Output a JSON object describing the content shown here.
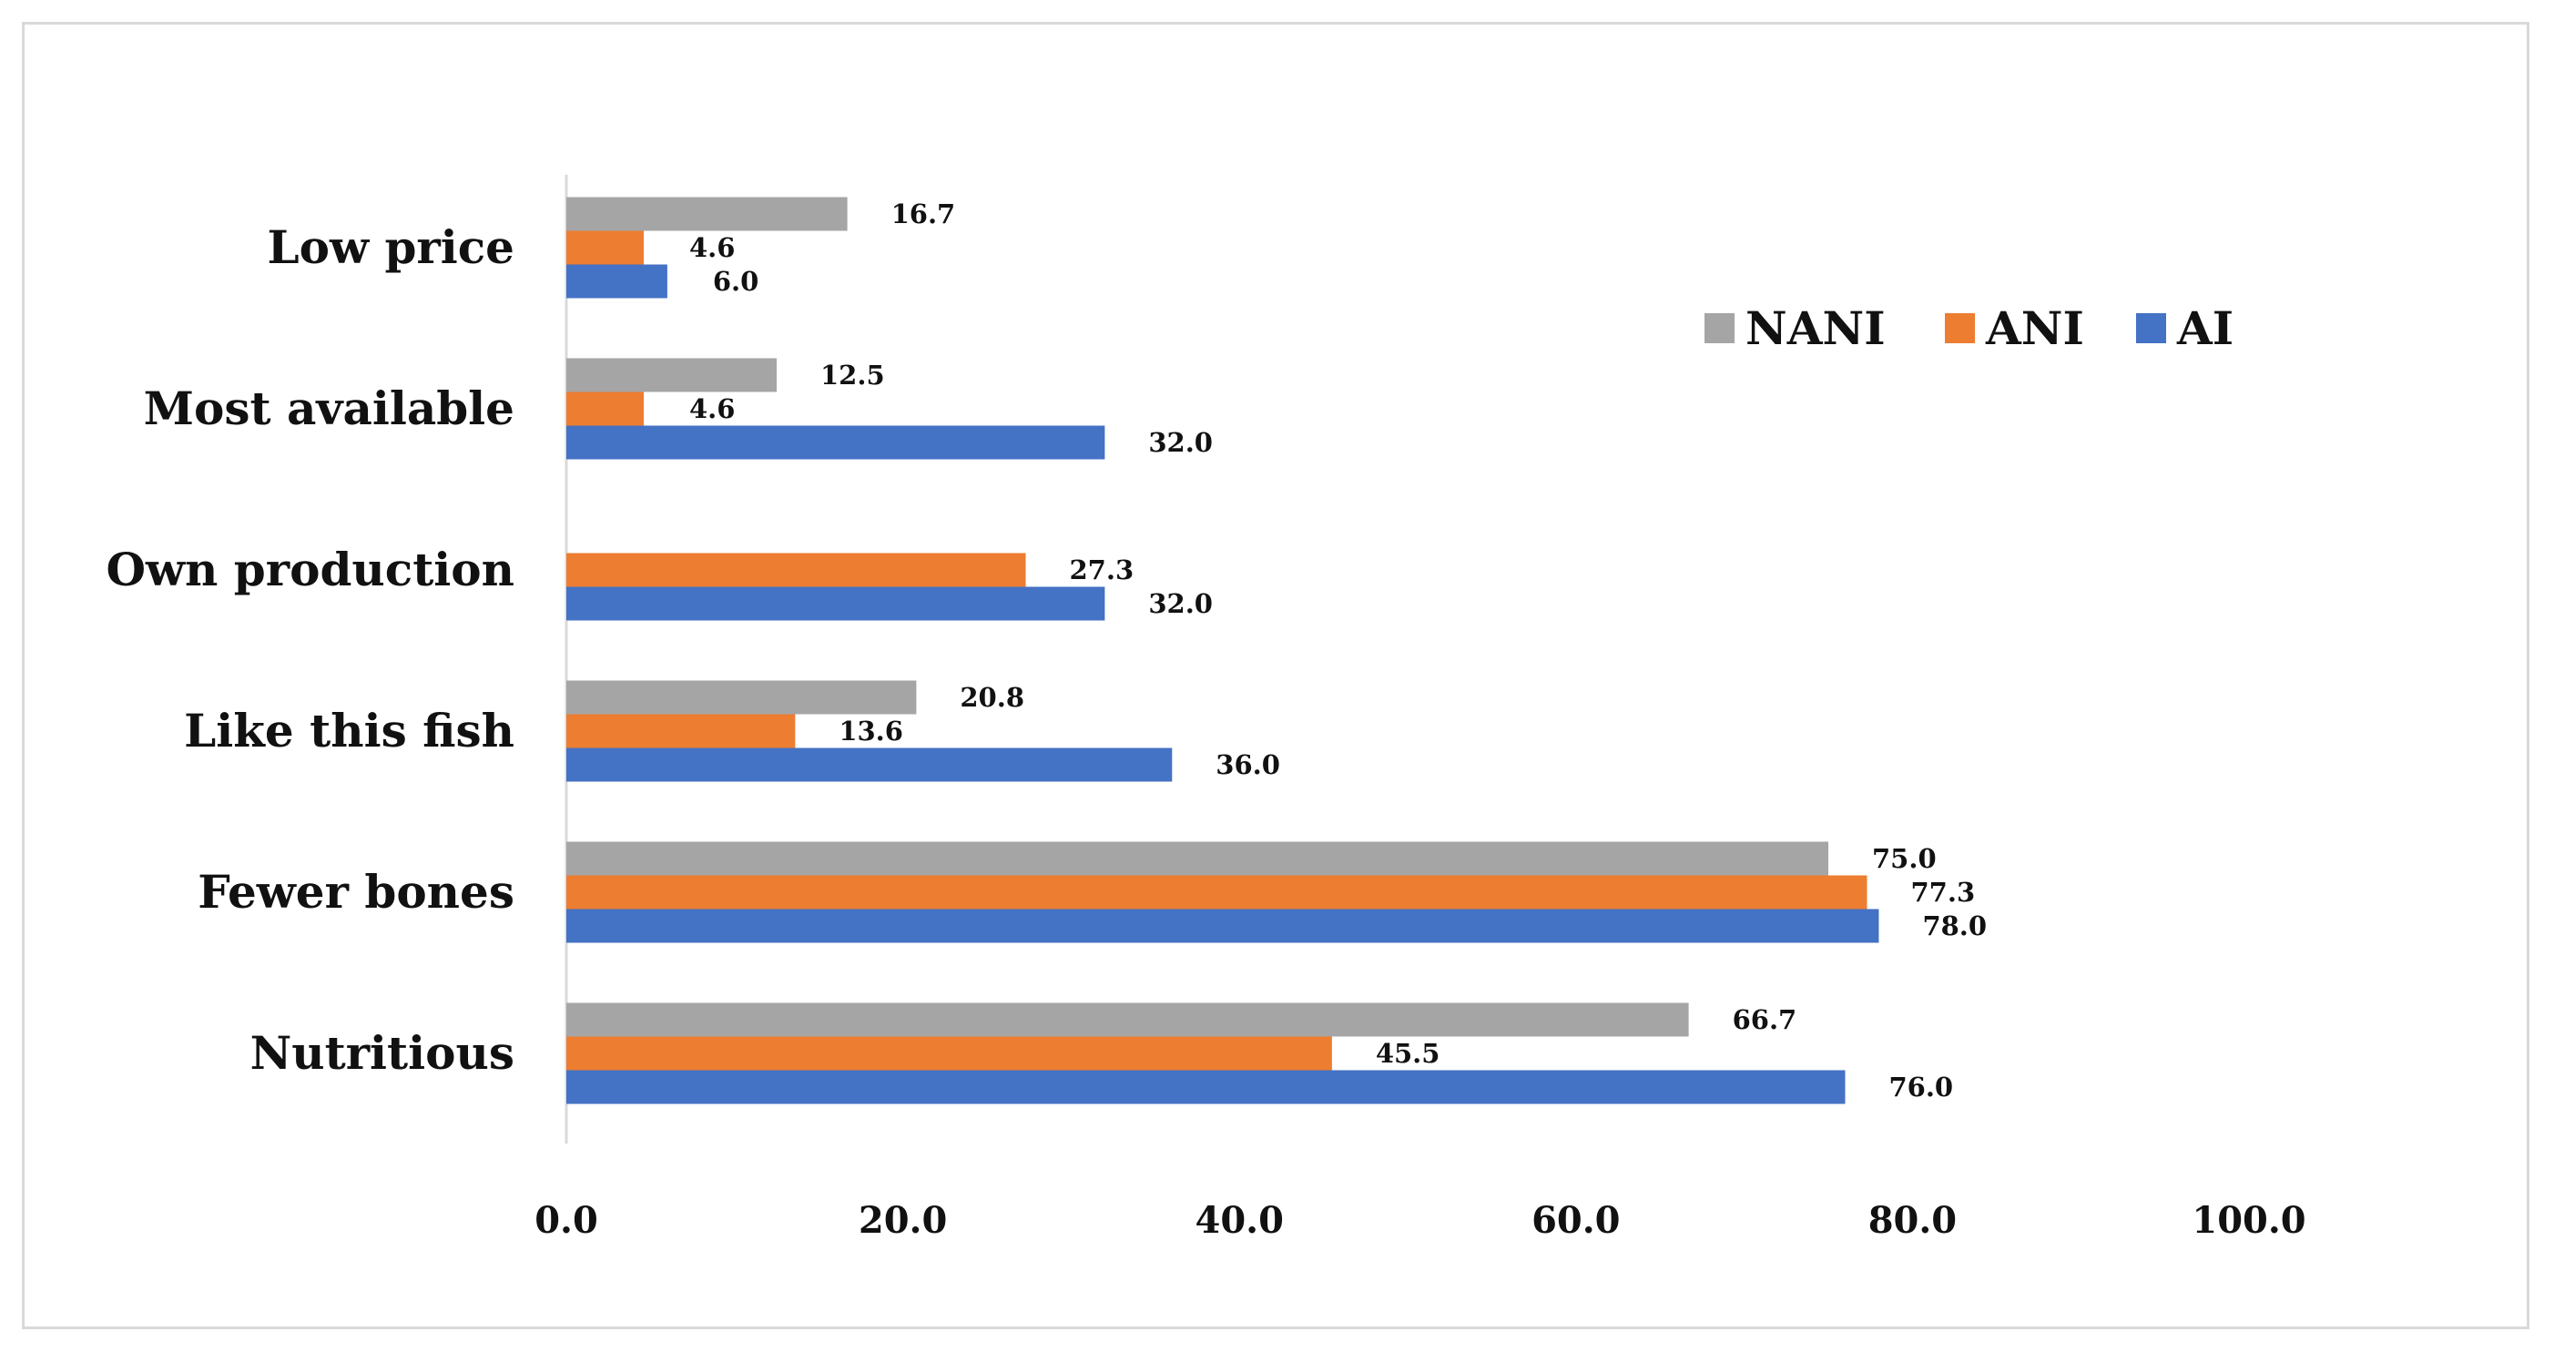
{
  "chart_data": {
    "type": "bar",
    "orientation": "horizontal",
    "title": "",
    "xlabel": "",
    "ylabel": "",
    "xlim": [
      0,
      100
    ],
    "x_ticks": [
      0,
      20,
      40,
      60,
      80,
      100
    ],
    "x_tick_labels": [
      "0.0",
      "20.0",
      "40.0",
      "60.0",
      "80.0",
      "100.0"
    ],
    "grid": false,
    "legend_position": "top-right",
    "categories": [
      "Low price",
      "Most available",
      "Own production",
      "Like this fish",
      "Fewer bones",
      "Nutritious"
    ],
    "series": [
      {
        "name": "NANI",
        "color": "#a5a5a5",
        "values": [
          16.7,
          12.5,
          null,
          20.8,
          75.0,
          66.7
        ],
        "labels": [
          "16.7",
          "12.5",
          null,
          "20.8",
          "75.0",
          "66.7"
        ]
      },
      {
        "name": "ANI",
        "color": "#ed7d31",
        "values": [
          4.6,
          4.6,
          27.3,
          13.6,
          77.3,
          45.5
        ],
        "labels": [
          "4.6",
          "4.6",
          "27.3",
          "13.6",
          "77.3",
          "45.5"
        ]
      },
      {
        "name": "AI",
        "color": "#4472c4",
        "values": [
          6.0,
          32.0,
          32.0,
          36.0,
          78.0,
          76.0
        ],
        "labels": [
          "6.0",
          "32.0",
          "32.0",
          "36.0",
          "78.0",
          "76.0"
        ]
      }
    ],
    "axis_color": "#d9d9d9",
    "frame_color": "#d9d9d9"
  }
}
